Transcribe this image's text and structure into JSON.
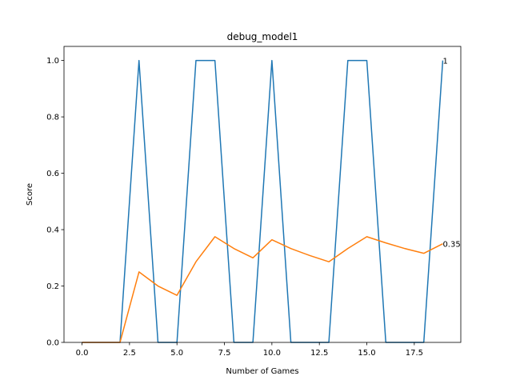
{
  "chart_data": {
    "type": "line",
    "title": "debug_model1",
    "xlabel": "Number of Games",
    "ylabel": "Score",
    "xlim": [
      -0.95,
      19.95
    ],
    "ylim": [
      0.0,
      1.05
    ],
    "xticks": [
      0.0,
      2.5,
      5.0,
      7.5,
      10.0,
      12.5,
      15.0,
      17.5
    ],
    "xtick_labels": [
      "0.0",
      "2.5",
      "5.0",
      "7.5",
      "10.0",
      "12.5",
      "15.0",
      "17.5"
    ],
    "yticks": [
      0.0,
      0.2,
      0.4,
      0.6,
      0.8,
      1.0
    ],
    "ytick_labels": [
      "0.0",
      "0.2",
      "0.4",
      "0.6",
      "0.8",
      "1.0"
    ],
    "grid": false,
    "x": [
      0,
      1,
      2,
      3,
      4,
      5,
      6,
      7,
      8,
      9,
      10,
      11,
      12,
      13,
      14,
      15,
      16,
      17,
      18,
      19
    ],
    "series": [
      {
        "color": "#1f77b4",
        "values": [
          0,
          0,
          0,
          1,
          0,
          0,
          1,
          1,
          0,
          0,
          1,
          0,
          0,
          0,
          1,
          1,
          0,
          0,
          0,
          1
        ]
      },
      {
        "color": "#ff7f0e",
        "values": [
          0,
          0,
          0,
          0.25,
          0.2,
          0.167,
          0.286,
          0.375,
          0.333,
          0.3,
          0.364,
          0.333,
          0.308,
          0.286,
          0.333,
          0.375,
          0.353,
          0.333,
          0.316,
          0.35
        ]
      }
    ],
    "annotations": [
      {
        "x": 19,
        "y": 1.0,
        "text": "1"
      },
      {
        "x": 19,
        "y": 0.35,
        "text": "0.35"
      }
    ]
  }
}
